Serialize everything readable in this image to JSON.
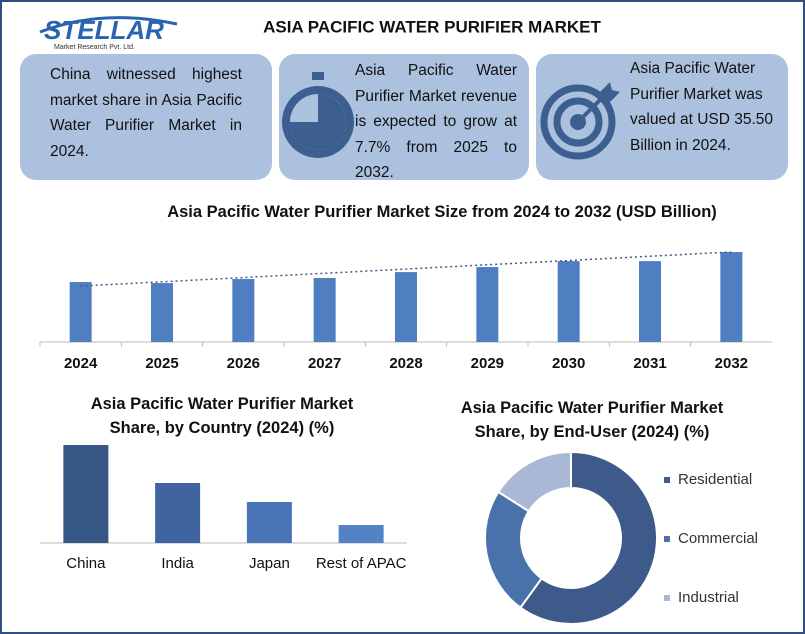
{
  "header": {
    "logo": "STELLAR",
    "logo_subtitle": "Market Research Pvt. Ltd.",
    "title": "ASIA PACIFIC WATER PURIFIER MARKET"
  },
  "cards": [
    "China witnessed highest market share in Asia Pacific Water Purifier Market in 2024.",
    "Asia Pacific Water Purifier Market revenue is expected to grow at 7.7% from 2025 to 2032.",
    "Asia Pacific Water Purifier Market was valued at USD 35.50 Billion in 2024."
  ],
  "chart_data": [
    {
      "type": "bar",
      "title": "Asia Pacific Water Purifier Market Size from 2024 to 2032 (USD Billion)",
      "categories": [
        "2024",
        "2025",
        "2026",
        "2027",
        "2028",
        "2029",
        "2030",
        "2031",
        "2032"
      ],
      "values": [
        35.5,
        34.9,
        37.3,
        37.9,
        41.4,
        44.4,
        47.9,
        47.9,
        53.3
      ],
      "color": "#4f7fc0",
      "trendline": true
    },
    {
      "type": "bar",
      "title": "Asia Pacific Water Purifier Market Share, by Country (2024) (%)",
      "categories": [
        "China",
        "India",
        "Japan",
        "Rest of APAC"
      ],
      "values": [
        49,
        30,
        20.5,
        9
      ],
      "colors": [
        "#375784",
        "#3f64a0",
        "#4a74b8",
        "#5283c7"
      ]
    },
    {
      "type": "donut",
      "title": "Asia Pacific Water Purifier Market Share, by End-User (2024) (%)",
      "categories": [
        "Residential",
        "Commercial",
        "Industrial"
      ],
      "values": [
        60,
        24,
        16
      ],
      "colors": [
        "#3d5a8a",
        "#4a72aa",
        "#a9b8d6"
      ],
      "legend": "right"
    }
  ]
}
